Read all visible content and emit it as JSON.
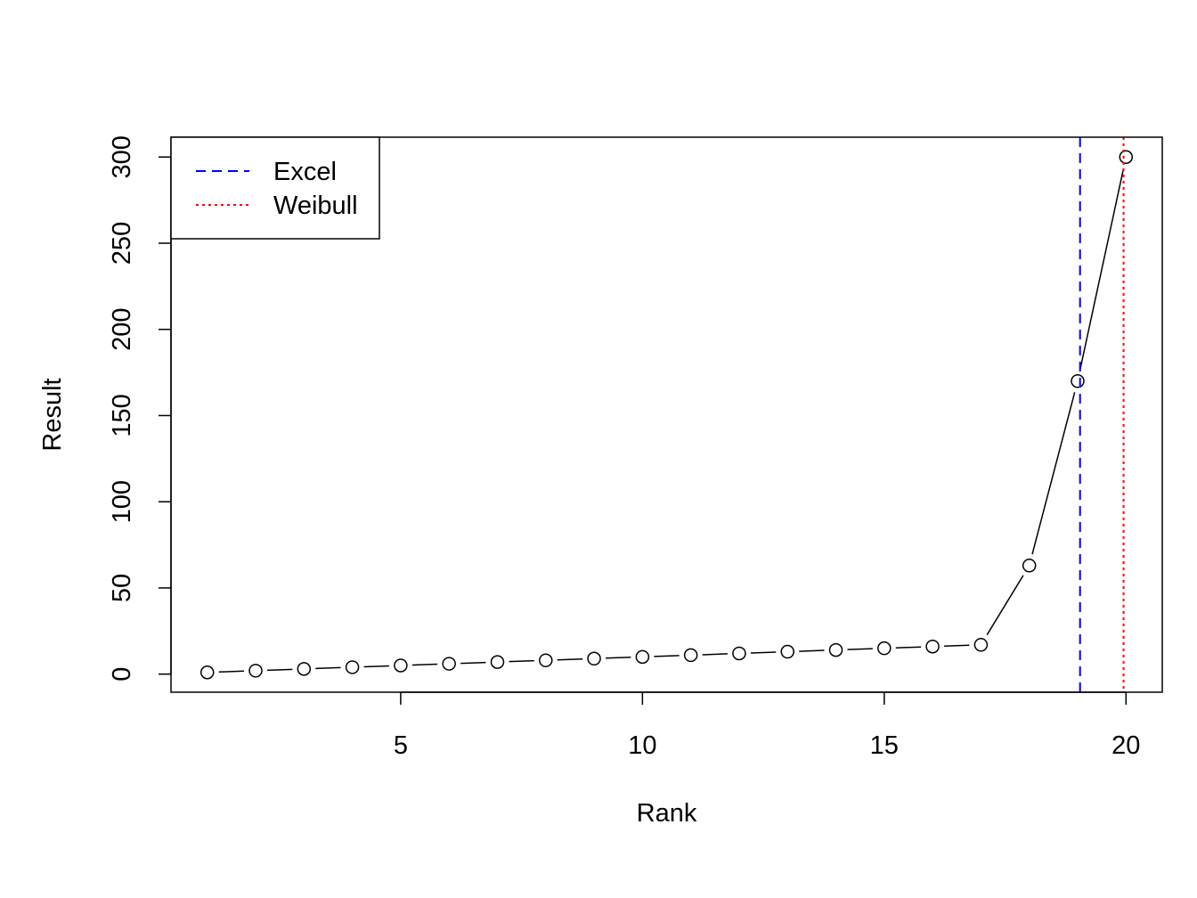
{
  "chart_data": {
    "type": "line",
    "title": "",
    "xlabel": "Rank",
    "ylabel": "Result",
    "xlim": [
      0.25,
      20.75
    ],
    "ylim": [
      -10.5,
      311.5
    ],
    "x_ticks": [
      5,
      10,
      15,
      20
    ],
    "y_ticks": [
      0,
      50,
      100,
      150,
      200,
      250,
      300
    ],
    "grid": false,
    "legend_position": "top-left",
    "series": [
      {
        "x": [
          1,
          2,
          3,
          4,
          5,
          6,
          7,
          8,
          9,
          10,
          11,
          12,
          13,
          14,
          15,
          16,
          17,
          18,
          19,
          20
        ],
        "values": [
          1,
          2,
          3,
          4,
          5,
          6,
          7,
          8,
          9,
          10,
          11,
          12,
          13,
          14,
          15,
          16,
          17,
          63,
          170,
          300
        ],
        "color": "#000000",
        "marker": "open-circle"
      }
    ],
    "vlines": [
      {
        "name": "Excel",
        "x": 19.05,
        "color": "#0000ff",
        "style": "dashed"
      },
      {
        "name": "Weibull",
        "x": 19.95,
        "color": "#ff0000",
        "style": "dotted"
      }
    ]
  }
}
